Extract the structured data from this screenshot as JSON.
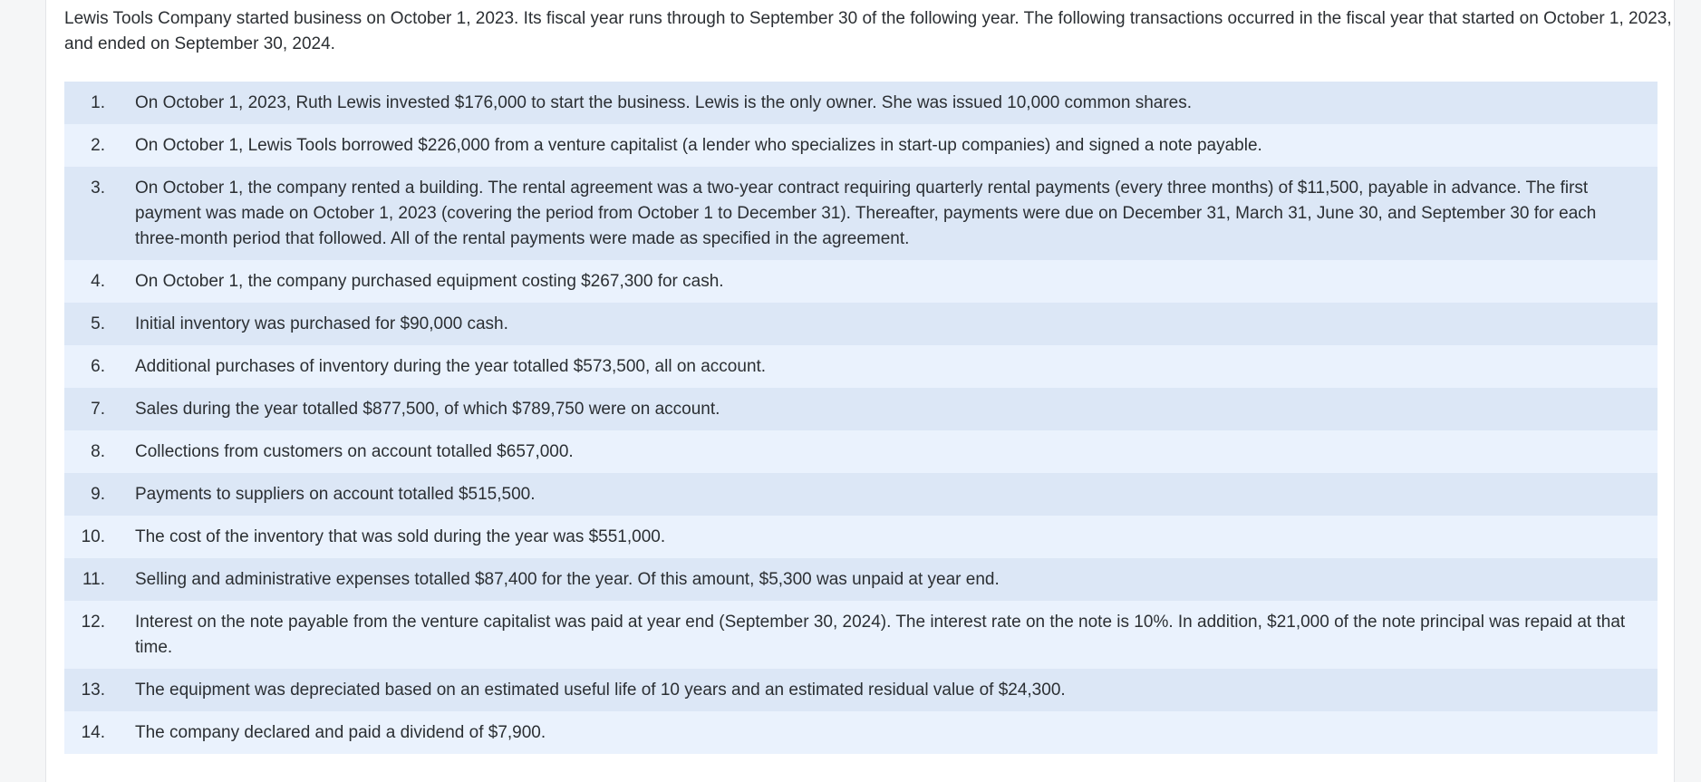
{
  "intro": "Lewis Tools Company started business on October 1, 2023. Its fiscal year runs through to September 30 of the following year. The following transactions occurred in the fiscal year that started on October 1, 2023, and ended on September 30, 2024.",
  "transactions": [
    {
      "num": "1.",
      "text": "On October 1, 2023, Ruth Lewis invested $176,000 to start the business. Lewis is the only owner. She was issued 10,000 common shares."
    },
    {
      "num": "2.",
      "text": "On October 1, Lewis Tools borrowed $226,000 from a venture capitalist (a lender who specializes in start-up companies) and signed a note payable."
    },
    {
      "num": "3.",
      "text": "On October 1, the company rented a building. The rental agreement was a two-year contract requiring quarterly rental payments (every three months) of $11,500, payable in advance. The first payment was made on October 1, 2023 (covering the period from October 1 to December 31). Thereafter, payments were due on December 31, March 31, June 30, and September 30 for each three-month period that followed. All of the rental payments were made as specified in the agreement."
    },
    {
      "num": "4.",
      "text": "On October 1, the company purchased equipment costing $267,300 for cash."
    },
    {
      "num": "5.",
      "text": "Initial inventory was purchased for $90,000 cash."
    },
    {
      "num": "6.",
      "text": "Additional purchases of inventory during the year totalled $573,500, all on account."
    },
    {
      "num": "7.",
      "text": "Sales during the year totalled $877,500, of which $789,750 were on account."
    },
    {
      "num": "8.",
      "text": "Collections from customers on account totalled $657,000."
    },
    {
      "num": "9.",
      "text": "Payments to suppliers on account totalled $515,500."
    },
    {
      "num": "10.",
      "text": "The cost of the inventory that was sold during the year was $551,000."
    },
    {
      "num": "11.",
      "text": "Selling and administrative expenses totalled $87,400 for the year. Of this amount, $5,300 was unpaid at year end."
    },
    {
      "num": "12.",
      "text": "Interest on the note payable from the venture capitalist was paid at year end (September 30, 2024). The interest rate on the note is 10%. In addition, $21,000 of the note principal was repaid at that time."
    },
    {
      "num": "13.",
      "text": "The equipment was depreciated based on an estimated useful life of 10 years and an estimated residual value of $24,300."
    },
    {
      "num": "14.",
      "text": "The company declared and paid a dividend of $7,900."
    }
  ]
}
